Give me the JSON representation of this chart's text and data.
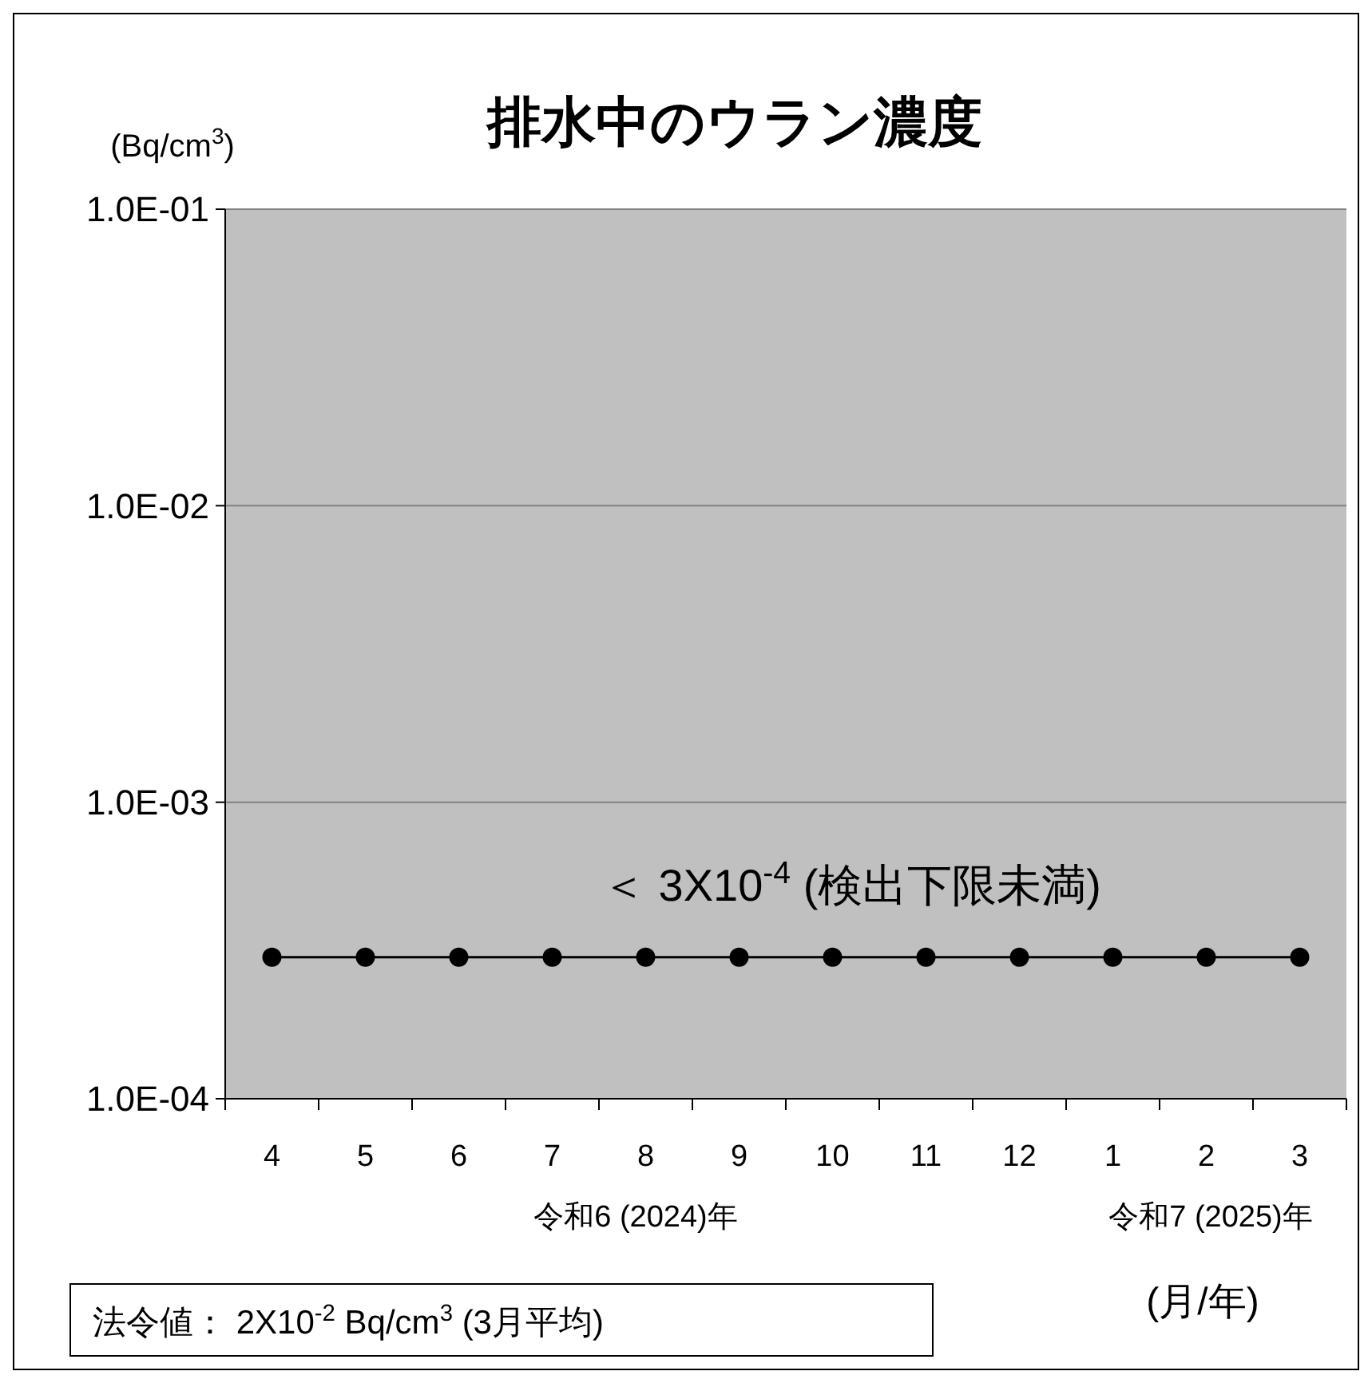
{
  "chart_data": {
    "type": "line",
    "title": "排水中のウラン濃度",
    "ylabel": "(Bq/cm$^{3}$)",
    "xlabel": "(月/年)",
    "categories": [
      "4",
      "5",
      "6",
      "7",
      "8",
      "9",
      "10",
      "11",
      "12",
      "1",
      "2",
      "3"
    ],
    "series": [
      {
        "color": "#000000",
        "values": [
          0.0003,
          0.0003,
          0.0003,
          0.0003,
          0.0003,
          0.0003,
          0.0003,
          0.0003,
          0.0003,
          0.0003,
          0.0003,
          0.0003
        ]
      }
    ],
    "log": true,
    "ylim": [
      0.0001,
      0.1
    ],
    "yticks": [
      {
        "value": 0.0001,
        "label": "1.0E-04"
      },
      {
        "value": 0.001,
        "label": "1.0E-03"
      },
      {
        "value": 0.01,
        "label": "1.0E-02"
      },
      {
        "value": 0.1,
        "label": "1.0E-01"
      }
    ],
    "grid": "y",
    "marker": "circle",
    "line_style": "solid",
    "annotations": [
      "＜  3X10$^{-4}$ (検出下限未満)",
      "令和6 (2024)年",
      "令和7 (2025)年",
      "法令値： 2X10$^{-2}$  Bq/cm$^{3}$ (3月平均)"
    ]
  }
}
